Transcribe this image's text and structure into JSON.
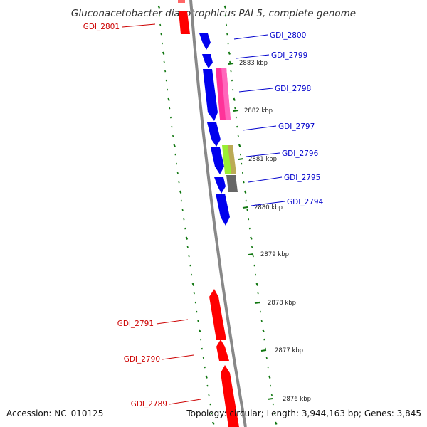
{
  "title": "Gluconacetobacter diazotrophicus PAI 5, complete genome",
  "footer": {
    "accession": "Accession: NC_010125",
    "topology": "Topology: circular; Length: 3,944,163 bp; Genes: 3,845"
  },
  "colors": {
    "forward": "#0000ee",
    "reverse": "#ff0000",
    "forward_label": "#0000cc",
    "reverse_label": "#cc0000",
    "backbone": "#888888",
    "ticks": "#117711"
  },
  "ticks": [
    {
      "label": "2883 kbp"
    },
    {
      "label": "2882 kbp"
    },
    {
      "label": "2881 kbp"
    },
    {
      "label": "2880 kbp"
    },
    {
      "label": "2879 kbp"
    },
    {
      "label": "2878 kbp"
    },
    {
      "label": "2877 kbp"
    },
    {
      "label": "2876 kbp"
    }
  ],
  "genes_forward": [
    {
      "label": "GDI_2800"
    },
    {
      "label": "GDI_2799"
    },
    {
      "label": "GDI_2798"
    },
    {
      "label": "GDI_2797"
    },
    {
      "label": "GDI_2796"
    },
    {
      "label": "GDI_2795"
    },
    {
      "label": "GDI_2794"
    }
  ],
  "genes_reverse": [
    {
      "label": "GDI_2801"
    },
    {
      "label": "GDI_2791"
    },
    {
      "label": "GDI_2790"
    },
    {
      "label": "GDI_2789"
    }
  ],
  "features": [
    {
      "name": "feature-pink",
      "color": "#ff3399"
    },
    {
      "name": "feature-green-yellow",
      "color": "#99cc33"
    },
    {
      "name": "feature-gray",
      "color": "#666666"
    }
  ]
}
